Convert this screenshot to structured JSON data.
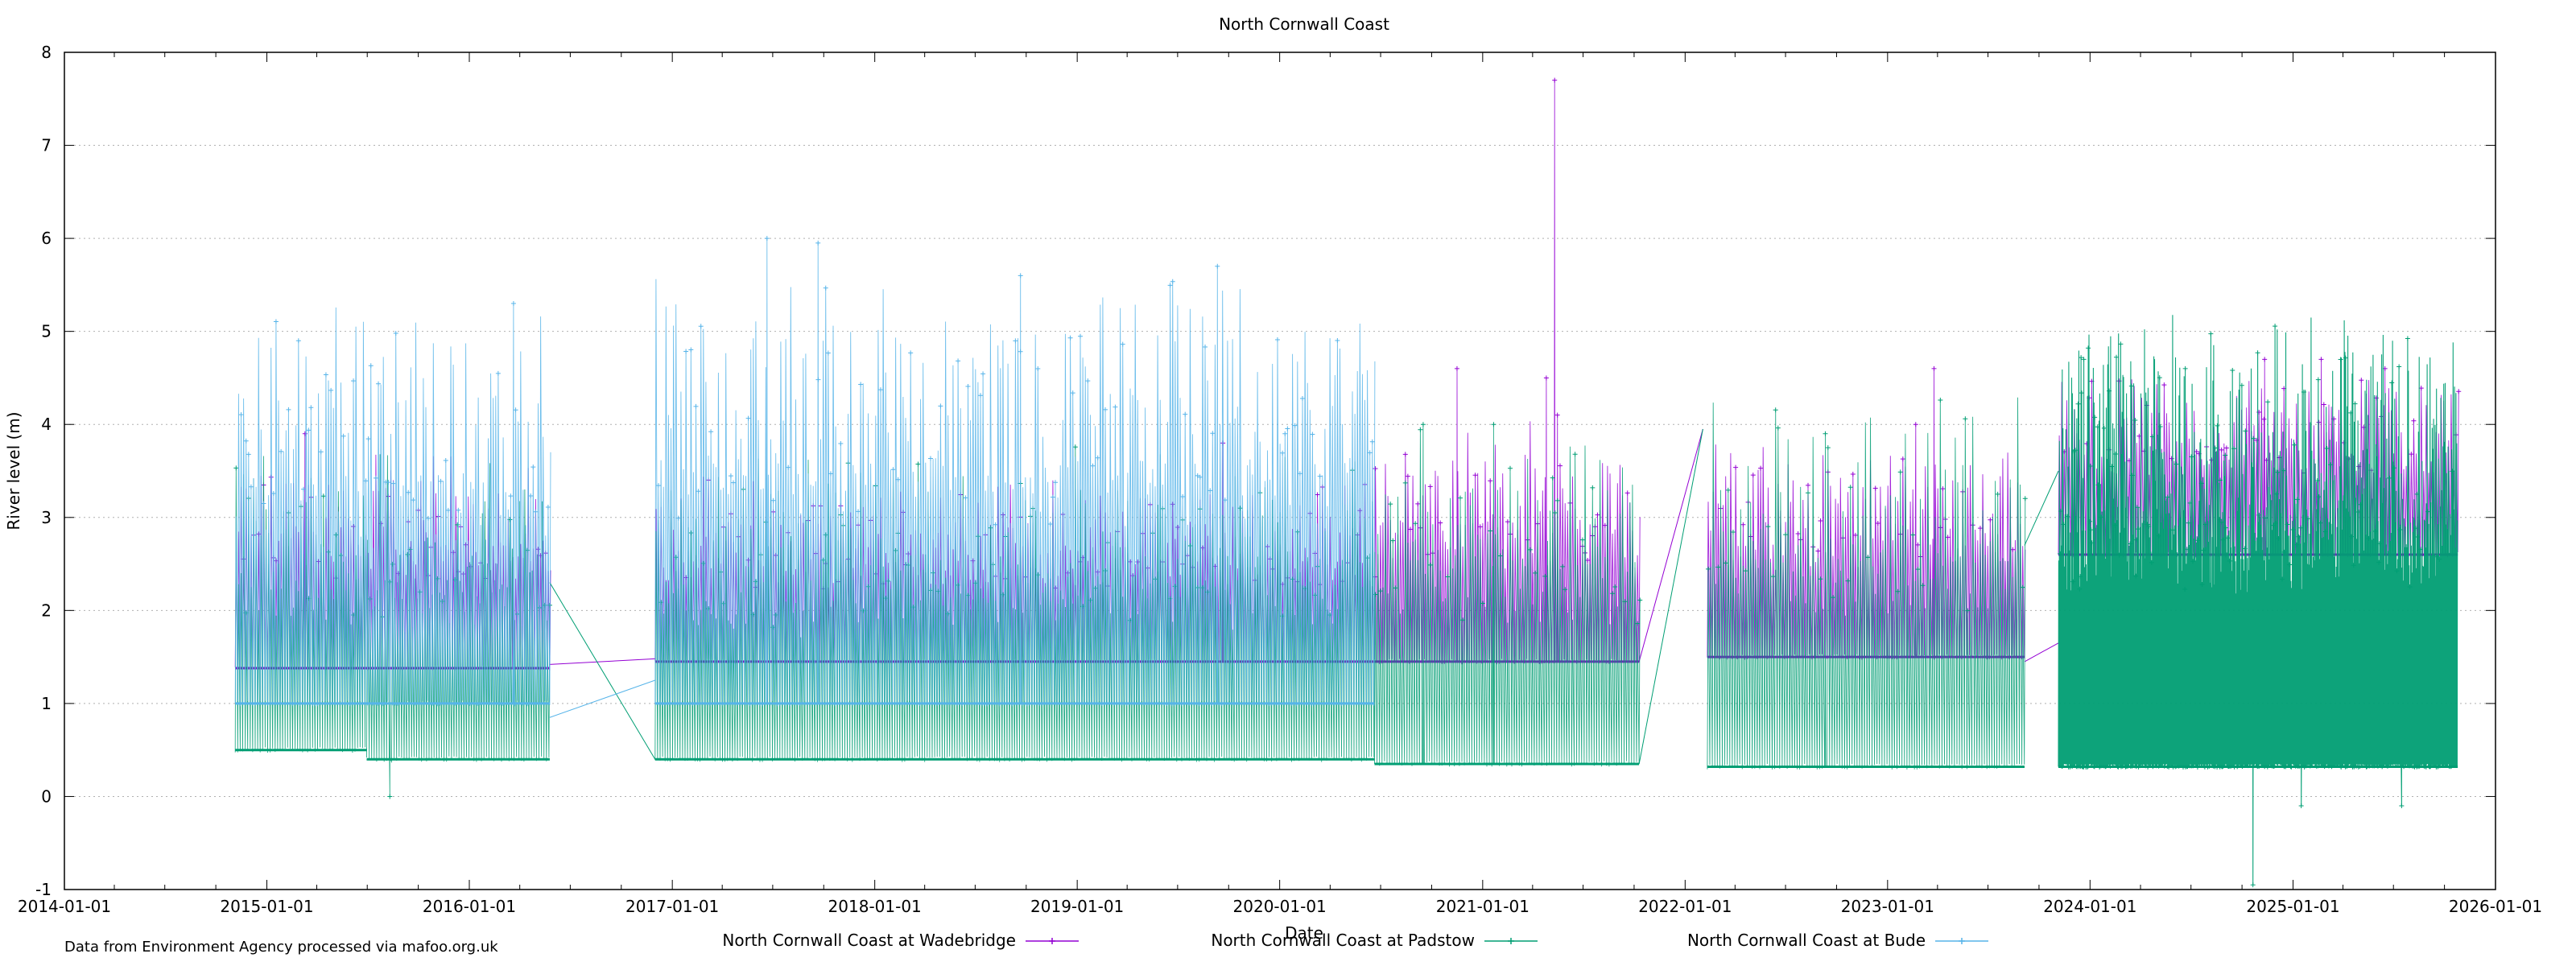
{
  "chart_data": {
    "type": "line",
    "title": "North Cornwall Coast",
    "xlabel": "Date",
    "ylabel": "River level (m)",
    "ylim": [
      -1,
      8
    ],
    "xlim": [
      "2014-01-01",
      "2026-01-01"
    ],
    "y_ticks": [
      "-1",
      "0",
      "1",
      "2",
      "3",
      "4",
      "5",
      "6",
      "7",
      "8"
    ],
    "x_ticks": [
      "2014-01-01",
      "2015-01-01",
      "2016-01-01",
      "2017-01-01",
      "2018-01-01",
      "2019-01-01",
      "2020-01-01",
      "2021-01-01",
      "2022-01-01",
      "2023-01-01",
      "2024-01-01",
      "2025-01-01",
      "2026-01-01"
    ],
    "grid": true,
    "legend_position": "bottom",
    "credit": "Data from Environment Agency processed via mafoo.org.uk",
    "colors": {
      "wadebridge": "#9400d3",
      "padstow": "#009e73",
      "bude": "#56b4e9"
    },
    "series": [
      {
        "name": "North Cornwall Coast at Wadebridge",
        "color_key": "wadebridge",
        "segments": [
          {
            "start": "2014-11-05",
            "end": "2016-05-25",
            "baseline": 1.38,
            "amp": 2.0,
            "extra_peaks": [
              [
                "2015-03-10",
                3.9
              ]
            ],
            "ends_x": []
          },
          {
            "start": "2016-12-01",
            "end": "2020-06-20",
            "baseline": 1.45,
            "amp": 1.7,
            "extra_peaks": [
              [
                "2019-09-20",
                3.8
              ]
            ]
          },
          {
            "start": "2020-06-20",
            "end": "2021-10-10",
            "baseline": 1.45,
            "amp": 2.2,
            "extra_peaks": [
              [
                "2021-05-10",
                7.7
              ],
              [
                "2021-04-25",
                4.5
              ],
              [
                "2020-11-15",
                4.6
              ],
              [
                "2021-05-15",
                4.1
              ]
            ]
          },
          {
            "start": "2022-02-10",
            "end": "2023-09-05",
            "baseline": 1.5,
            "amp": 2.0,
            "extra_peaks": [
              [
                "2023-03-25",
                4.6
              ],
              [
                "2023-02-20",
                4.0
              ]
            ]
          },
          {
            "start": "2023-11-05",
            "end": "2025-10-25",
            "baseline": 2.6,
            "amp": 1.7,
            "extra_peaks": [
              [
                "2024-11-10",
                4.7
              ],
              [
                "2025-02-20",
                4.7
              ],
              [
                "2025-06-15",
                4.6
              ]
            ]
          }
        ],
        "connectors": [
          [
            "2016-05-25",
            1.42,
            "2016-12-01",
            1.48
          ],
          [
            "2021-10-10",
            1.45,
            "2022-02-02",
            3.95
          ],
          [
            "2023-09-05",
            1.45,
            "2023-11-05",
            1.65
          ]
        ]
      },
      {
        "name": "North Cornwall Coast at Padstow",
        "color_key": "padstow",
        "segments": [
          {
            "start": "2014-11-05",
            "end": "2015-06-30",
            "baseline": 0.5,
            "amp": 2.8,
            "extra_peaks": []
          },
          {
            "start": "2015-06-30",
            "end": "2016-05-25",
            "baseline": 0.4,
            "amp": 2.8,
            "extra_peaks": [
              [
                "2015-08-10",
                0.0
              ]
            ]
          },
          {
            "start": "2016-12-01",
            "end": "2020-06-20",
            "baseline": 0.4,
            "amp": 2.9,
            "extra_peaks": []
          },
          {
            "start": "2020-06-20",
            "end": "2021-10-10",
            "baseline": 0.35,
            "amp": 3.2,
            "extra_peaks": [
              [
                "2020-09-15",
                4.0
              ],
              [
                "2021-01-20",
                4.0
              ]
            ]
          },
          {
            "start": "2022-02-10",
            "end": "2023-09-05",
            "baseline": 0.32,
            "amp": 3.4,
            "extra_peaks": [
              [
                "2022-09-10",
                3.9
              ]
            ]
          },
          {
            "start": "2023-11-05",
            "end": "2025-10-25",
            "baseline": 0.32,
            "amp": 4.1,
            "dense": true,
            "extra_peaks": [
              [
                "2024-10-20",
                -0.95
              ],
              [
                "2025-01-15",
                -0.1
              ],
              [
                "2025-07-15",
                -0.1
              ],
              [
                "2023-12-20",
                4.7
              ],
              [
                "2024-06-20",
                4.6
              ]
            ]
          }
        ],
        "connectors": [
          [
            "2016-05-25",
            2.3,
            "2016-12-01",
            0.4
          ],
          [
            "2021-10-10",
            0.35,
            "2022-02-02",
            3.95
          ],
          [
            "2023-09-05",
            2.7,
            "2023-11-05",
            3.5
          ]
        ]
      },
      {
        "name": "North Cornwall Coast at Bude",
        "color_key": "bude",
        "segments": [
          {
            "start": "2014-11-05",
            "end": "2016-05-25",
            "baseline": 1.0,
            "amp": 3.7,
            "extra_peaks": [
              [
                "2016-03-20",
                5.3
              ]
            ]
          },
          {
            "start": "2016-12-01",
            "end": "2020-06-20",
            "baseline": 1.0,
            "amp": 4.1,
            "extra_peaks": [
              [
                "2017-06-20",
                6.0
              ],
              [
                "2017-09-20",
                5.95
              ],
              [
                "2019-09-10",
                5.7
              ],
              [
                "2018-09-20",
                5.6
              ]
            ]
          }
        ],
        "connectors": [
          [
            "2016-05-25",
            0.85,
            "2016-12-01",
            1.25
          ]
        ]
      }
    ]
  }
}
